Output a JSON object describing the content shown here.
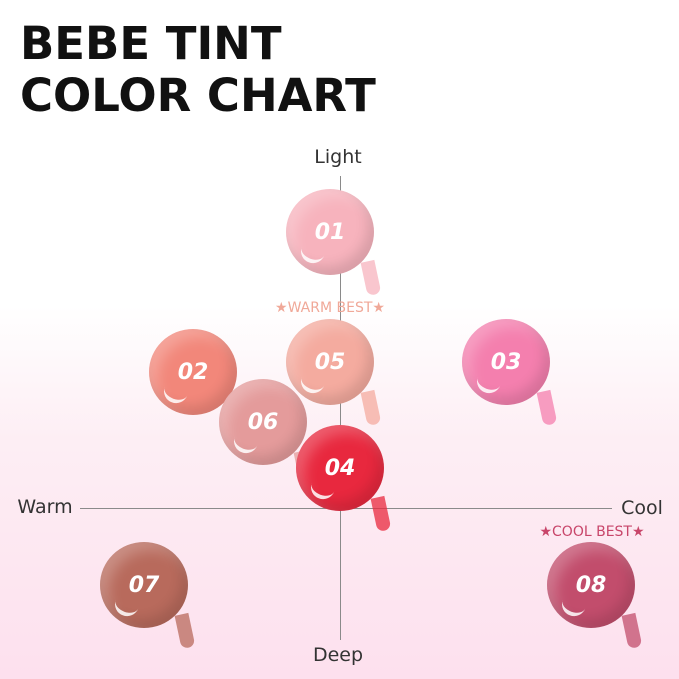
{
  "title_line1": "BEBE TINT",
  "title_line2": "COLOR CHART",
  "axes": {
    "top": "Light",
    "bottom": "Deep",
    "left": "Warm",
    "right": "Cool"
  },
  "badges": {
    "warm_best": {
      "text": "★WARM BEST★",
      "color": "#f0a898"
    },
    "cool_best": {
      "text": "★COOL BEST★",
      "color": "#c8456a"
    }
  },
  "swatches": [
    {
      "label": "01",
      "color": "#f7b3bd"
    },
    {
      "label": "02",
      "color": "#f2877a"
    },
    {
      "label": "03",
      "color": "#f47fae"
    },
    {
      "label": "04",
      "color": "#e8283e"
    },
    {
      "label": "05",
      "color": "#f4ab9f"
    },
    {
      "label": "06",
      "color": "#e49b9b"
    },
    {
      "label": "07",
      "color": "#b86a5c"
    },
    {
      "label": "08",
      "color": "#c24d6c"
    }
  ]
}
